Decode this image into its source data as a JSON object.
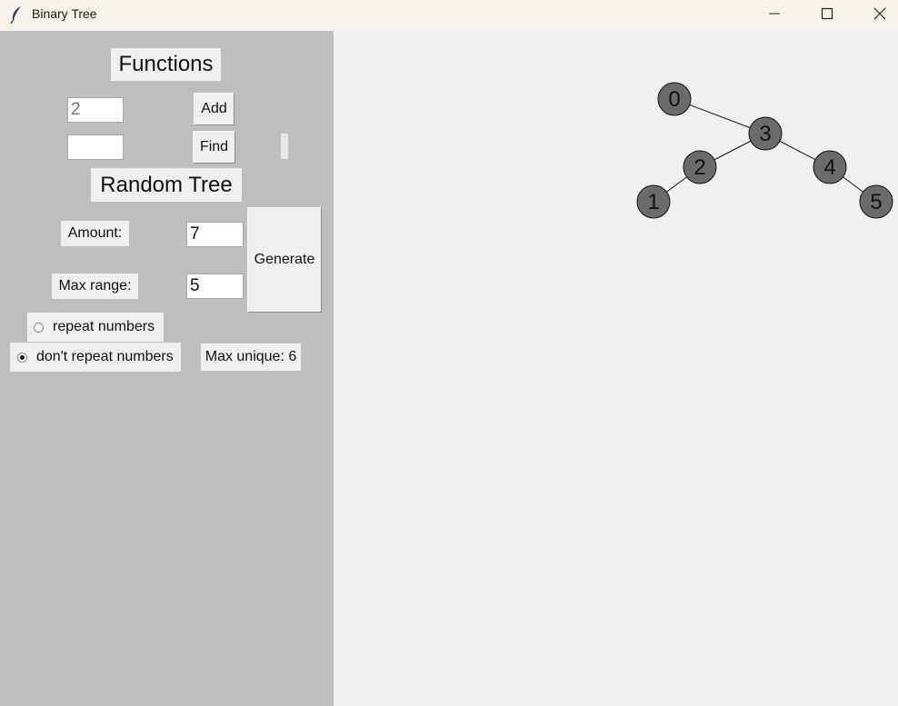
{
  "window": {
    "title": "Binary Tree"
  },
  "functions": {
    "heading": "Functions",
    "add_input_placeholder": "2",
    "add_label": "Add",
    "find_input_value": "",
    "find_label": "Find"
  },
  "random_tree": {
    "heading": "Random Tree",
    "amount_label": "Amount:",
    "amount_value": "7",
    "max_range_label": "Max range:",
    "max_range_value": "5",
    "generate_label": "Generate",
    "repeat_label": "repeat numbers",
    "no_repeat_label": "don't repeat numbers",
    "selected_option": "no_repeat",
    "max_unique_label": "Max unique: 6"
  },
  "tree": {
    "node_fill": "#6b6b6b",
    "nodes": [
      {
        "id": "n0",
        "value": "0"
      },
      {
        "id": "n3",
        "value": "3"
      },
      {
        "id": "n2",
        "value": "2"
      },
      {
        "id": "n4",
        "value": "4"
      },
      {
        "id": "n1",
        "value": "1"
      },
      {
        "id": "n5",
        "value": "5"
      }
    ],
    "edges": [
      {
        "from": "n0",
        "to": "n3"
      },
      {
        "from": "n3",
        "to": "n2"
      },
      {
        "from": "n3",
        "to": "n4"
      },
      {
        "from": "n2",
        "to": "n1"
      },
      {
        "from": "n4",
        "to": "n5"
      }
    ]
  }
}
